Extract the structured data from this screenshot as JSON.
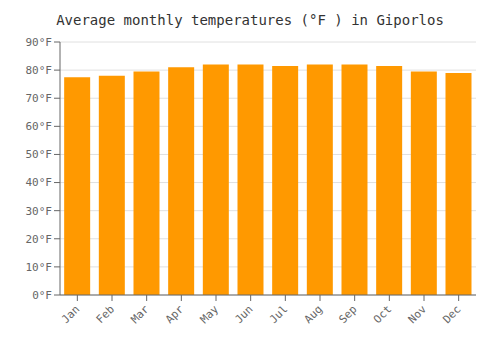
{
  "chart_data": {
    "type": "bar",
    "title": "Average monthly temperatures (°F ) in Giporlos",
    "categories": [
      "Jan",
      "Feb",
      "Mar",
      "Apr",
      "May",
      "Jun",
      "Jul",
      "Aug",
      "Sep",
      "Oct",
      "Nov",
      "Dec"
    ],
    "values": [
      77.5,
      78.0,
      79.5,
      81.0,
      82.0,
      82.0,
      81.5,
      82.0,
      82.0,
      81.5,
      79.5,
      79.0
    ],
    "color": "#ff9900",
    "ylim": [
      0,
      90
    ],
    "yticks": [
      {
        "value": 0,
        "label": "0°F"
      },
      {
        "value": 10,
        "label": "10°F"
      },
      {
        "value": 20,
        "label": "20°F"
      },
      {
        "value": 30,
        "label": "30°F"
      },
      {
        "value": 40,
        "label": "40°F"
      },
      {
        "value": 50,
        "label": "50°F"
      },
      {
        "value": 60,
        "label": "60°F"
      },
      {
        "value": 70,
        "label": "70°F"
      },
      {
        "value": 80,
        "label": "80°F"
      },
      {
        "value": 90,
        "label": "90°F"
      }
    ],
    "grid": true
  }
}
